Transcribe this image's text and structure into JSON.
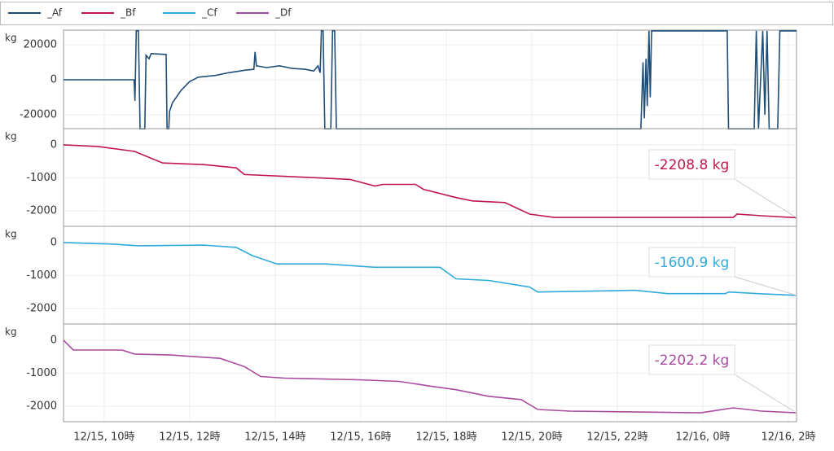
{
  "chart_data": [
    {
      "type": "line",
      "y_label": "kg",
      "x": [
        9.05,
        10.7,
        10.72,
        10.75,
        10.8,
        10.84,
        10.95,
        10.98,
        11.05,
        11.1,
        11.45,
        11.47,
        11.51,
        11.53,
        11.6,
        11.8,
        12.0,
        12.2,
        12.6,
        12.9,
        13.3,
        13.5,
        13.53,
        13.56,
        13.8,
        14.1,
        14.4,
        14.7,
        14.9,
        15.0,
        15.05,
        15.08,
        15.12,
        15.16,
        15.3,
        15.34,
        15.39,
        15.43,
        22.55,
        22.6,
        22.63,
        22.67,
        22.7,
        22.74,
        22.77,
        22.8,
        24.57,
        24.6,
        25.2,
        25.25,
        25.3,
        25.4,
        25.45,
        25.5,
        25.55,
        25.75,
        25.8,
        26.19
      ],
      "series": [
        {
          "name": "_Af",
          "color": "#1f4e79",
          "values": [
            0,
            0,
            -12000,
            28000,
            28000,
            -28000,
            -28000,
            14000,
            12000,
            15000,
            14500,
            -28000,
            -28000,
            -18000,
            -13000,
            -6000,
            -1000,
            1500,
            2500,
            4000,
            5500,
            6000,
            16000,
            8000,
            7000,
            8000,
            6500,
            6000,
            5000,
            8000,
            4000,
            28000,
            28000,
            -28000,
            -28000,
            28000,
            28000,
            -28000,
            -28000,
            10000,
            -22000,
            12000,
            -15000,
            28000,
            -10000,
            28000,
            28000,
            -28000,
            -28000,
            28000,
            -28000,
            28000,
            -20000,
            28000,
            -28000,
            -28000,
            28000,
            28000
          ]
        }
      ],
      "xlim": [
        9.05,
        26.19
      ],
      "ylim": [
        -27900,
        28400
      ],
      "yticks": [
        -20000,
        0,
        20000
      ]
    },
    {
      "type": "line",
      "y_label": "kg",
      "x": [
        9.05,
        9.85,
        10.71,
        11.37,
        12.33,
        13.09,
        13.28,
        14.99,
        15.75,
        16.33,
        16.52,
        17.28,
        17.47,
        18.23,
        18.61,
        19.37,
        19.95,
        20.52,
        22.42,
        24.71,
        24.8,
        25.37,
        26.19
      ],
      "series": [
        {
          "name": "_Bf",
          "color": "#c0174a",
          "values": [
            0,
            -50,
            -200,
            -550,
            -600,
            -700,
            -900,
            -1000,
            -1050,
            -1250,
            -1200,
            -1200,
            -1350,
            -1600,
            -1700,
            -1750,
            -2100,
            -2200,
            -2200,
            -2200,
            -2100,
            -2150,
            -2208.8
          ],
          "value_labels": [
            null,
            null,
            null,
            null,
            null,
            null,
            null,
            null,
            null,
            null,
            null,
            null,
            null,
            null,
            null,
            null,
            null,
            null,
            null,
            null,
            null,
            null,
            "-2208.8 kg"
          ]
        }
      ],
      "xlim": [
        9.05,
        26.19
      ],
      "ylim": [
        -2470,
        490
      ],
      "yticks": [
        -2000,
        -1000,
        0
      ]
    },
    {
      "type": "line",
      "y_label": "kg",
      "x": [
        9.05,
        10.23,
        10.8,
        12.33,
        13.09,
        13.47,
        14.04,
        15.18,
        16.33,
        17.85,
        18.23,
        18.99,
        19.95,
        20.14,
        22.42,
        23.18,
        24.52,
        24.61,
        25.28,
        26.19
      ],
      "series": [
        {
          "name": "_Cf",
          "color": "#2eaadc",
          "values": [
            0,
            -50,
            -100,
            -80,
            -150,
            -400,
            -650,
            -650,
            -750,
            -750,
            -1100,
            -1150,
            -1350,
            -1500,
            -1450,
            -1550,
            -1550,
            -1500,
            -1550,
            -1600.9
          ],
          "value_labels": [
            null,
            null,
            null,
            null,
            null,
            null,
            null,
            null,
            null,
            null,
            null,
            null,
            null,
            null,
            null,
            null,
            null,
            null,
            null,
            "-1600.9 kg"
          ]
        }
      ],
      "xlim": [
        9.05,
        26.19
      ],
      "ylim": [
        -2470,
        490
      ],
      "yticks": [
        -2000,
        -1000,
        0
      ]
    },
    {
      "type": "line",
      "y_label": "kg",
      "x": [
        9.05,
        9.28,
        10.42,
        10.71,
        11.56,
        12.71,
        13.28,
        13.66,
        14.23,
        15.94,
        16.9,
        17.66,
        18.23,
        18.99,
        19.75,
        20.14,
        20.9,
        23.95,
        24.71,
        25.37,
        26.19
      ],
      "series": [
        {
          "name": "_Df",
          "color": "#a84a9f",
          "values": [
            0,
            -300,
            -300,
            -420,
            -450,
            -550,
            -800,
            -1100,
            -1150,
            -1200,
            -1250,
            -1400,
            -1500,
            -1700,
            -1800,
            -2100,
            -2150,
            -2200,
            -2050,
            -2150,
            -2202.2
          ],
          "value_labels": [
            null,
            null,
            null,
            null,
            null,
            null,
            null,
            null,
            null,
            null,
            null,
            null,
            null,
            null,
            null,
            null,
            null,
            null,
            null,
            null,
            "-2202.2 kg"
          ]
        }
      ],
      "xlim": [
        9.05,
        26.19
      ],
      "ylim": [
        -2470,
        490
      ],
      "yticks": [
        -2000,
        -1000,
        0
      ],
      "xticks": [
        {
          "value": 10,
          "label": "12/15, 10時"
        },
        {
          "value": 12,
          "label": "12/15, 12時"
        },
        {
          "value": 14,
          "label": "12/15, 14時"
        },
        {
          "value": 16,
          "label": "12/15, 16時"
        },
        {
          "value": 18,
          "label": "12/15, 18時"
        },
        {
          "value": 20,
          "label": "12/15, 20時"
        },
        {
          "value": 22,
          "label": "12/15, 22時"
        },
        {
          "value": 24,
          "label": "12/16, 0時"
        },
        {
          "value": 26,
          "label": "12/16, 2時"
        }
      ]
    }
  ]
}
